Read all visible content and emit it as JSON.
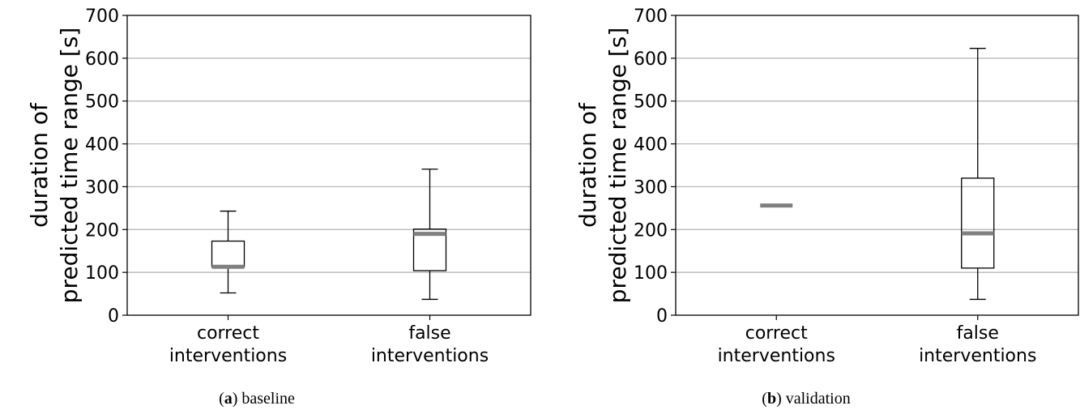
{
  "chart_data": [
    {
      "type": "boxplot",
      "caption_letter": "a",
      "caption_text": "baseline",
      "ylabel_lines": [
        "duration of",
        "predicted time range [s]"
      ],
      "ylim": [
        0,
        700
      ],
      "yticks": [
        0,
        100,
        200,
        300,
        400,
        500,
        600,
        700
      ],
      "grid": "y",
      "categories": [
        {
          "lines": [
            "correct",
            "interventions"
          ],
          "whislo": 52,
          "q1": 113,
          "med": 113,
          "q3": 173,
          "whishi": 243
        },
        {
          "lines": [
            "false",
            "interventions"
          ],
          "whislo": 37,
          "q1": 104,
          "med": 190,
          "q3": 201,
          "whishi": 341
        }
      ]
    },
    {
      "type": "boxplot",
      "caption_letter": "b",
      "caption_text": "validation",
      "ylabel_lines": [
        "duration of",
        "predicted time range [s]"
      ],
      "ylim": [
        0,
        700
      ],
      "yticks": [
        0,
        100,
        200,
        300,
        400,
        500,
        600,
        700
      ],
      "grid": "y",
      "categories": [
        {
          "lines": [
            "correct",
            "interventions"
          ],
          "whislo": 256,
          "q1": 256,
          "med": 256,
          "q3": 256,
          "whishi": 256
        },
        {
          "lines": [
            "false",
            "interventions"
          ],
          "whislo": 37,
          "q1": 110,
          "med": 191,
          "q3": 320,
          "whishi": 623
        }
      ]
    }
  ],
  "colors": {
    "median": "#808080",
    "box": "#000000",
    "grid": "#b0b0b0"
  }
}
